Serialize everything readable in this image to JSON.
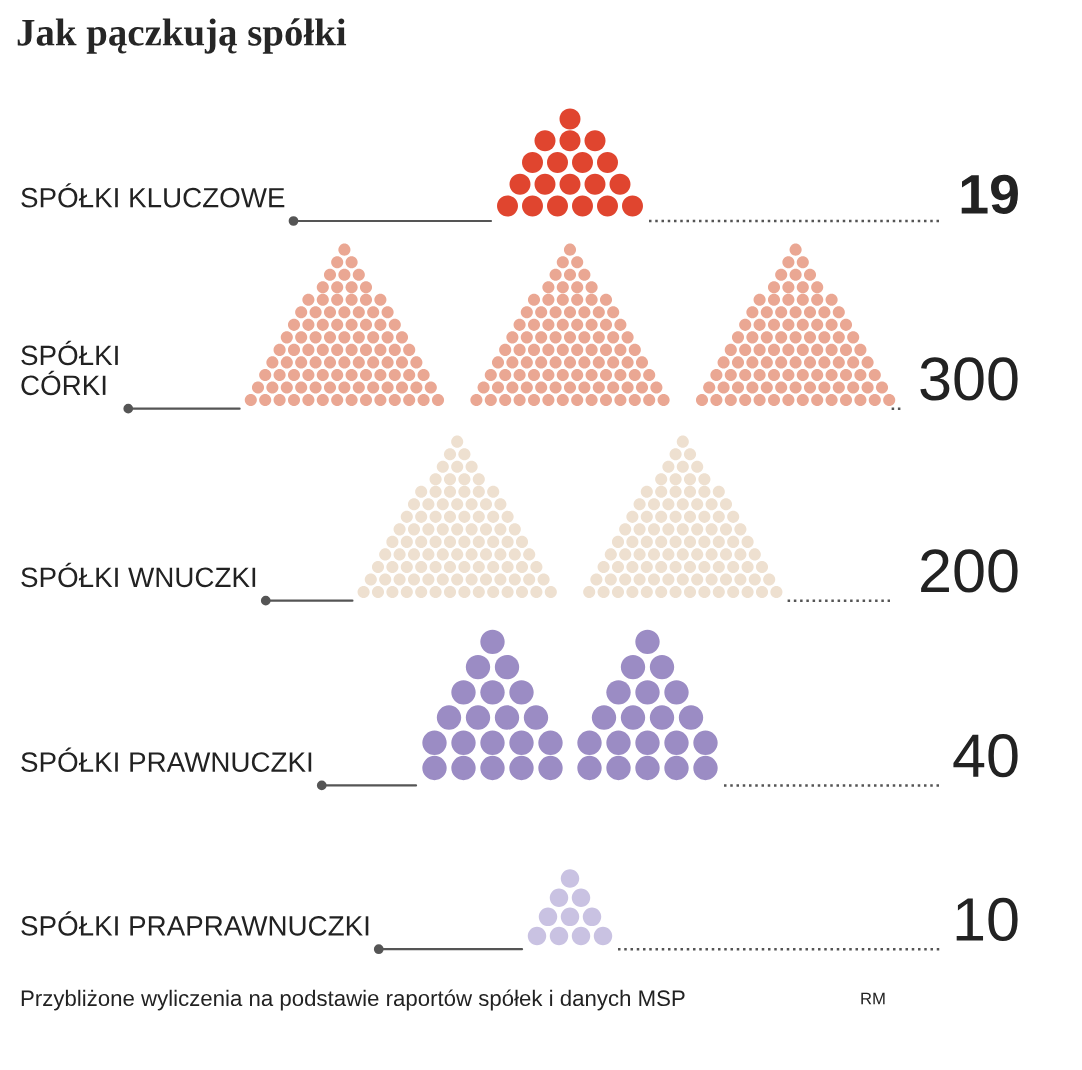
{
  "chart_data": {
    "type": "other",
    "title": "Jak pączkują spółki",
    "categories": [
      "SPÓŁKI KLUCZOWE",
      "SPÓŁKI\nCÓRKI",
      "SPÓŁKI WNUCZKI",
      "SPÓŁKI PRAWNUCZKI",
      "SPÓŁKI PRAPRAWNUCZKI"
    ],
    "values": [
      19,
      300,
      200,
      40,
      10
    ],
    "colors": [
      "#e0452f",
      "#eaa793",
      "#eee0d0",
      "#9b8cc4",
      "#c9c2e2"
    ],
    "data_labels": true,
    "annotations": [
      "Przybliżone wyliczenia na podstawie raportów spółek i danych MSP",
      "RM"
    ]
  }
}
